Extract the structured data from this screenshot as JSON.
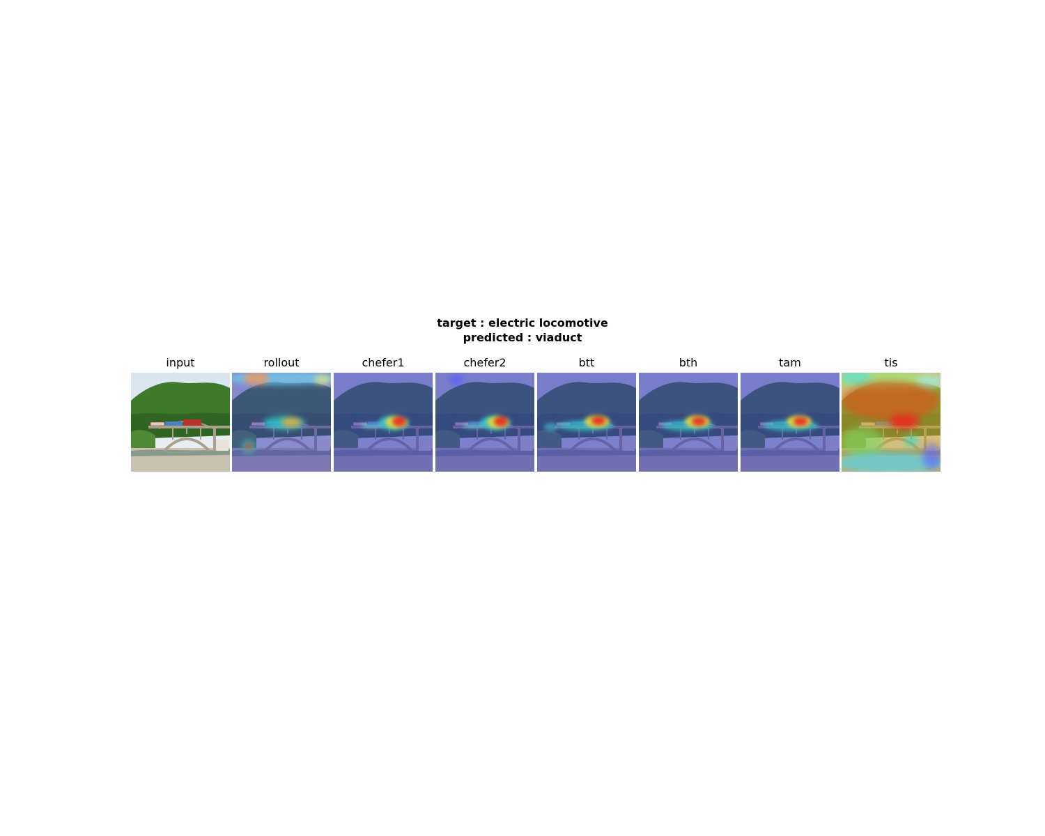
{
  "figure": {
    "title_target": "target : electric locomotive",
    "title_predicted": "predicted : viaduct",
    "panels": [
      {
        "label": "input",
        "type": "photo"
      },
      {
        "label": "rollout",
        "type": "heatmap"
      },
      {
        "label": "chefer1",
        "type": "heatmap"
      },
      {
        "label": "chefer2",
        "type": "heatmap"
      },
      {
        "label": "btt",
        "type": "heatmap"
      },
      {
        "label": "bth",
        "type": "heatmap"
      },
      {
        "label": "tam",
        "type": "heatmap"
      },
      {
        "label": "tis",
        "type": "heatmap"
      }
    ]
  },
  "colors": {
    "sky": "#d8e4ee",
    "hill": "#3d7a2c",
    "bridge": "#a9a08e",
    "ground": "#c9c1b0",
    "overlay_cool": "#3c3cb4",
    "overlay_hot": "#e8281e"
  }
}
